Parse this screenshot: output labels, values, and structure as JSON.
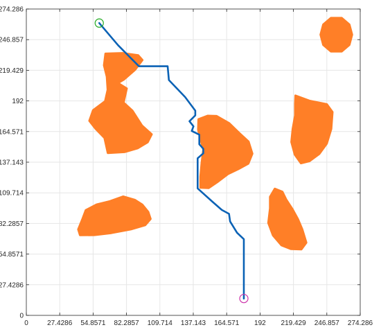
{
  "chart_data": {
    "type": "scatter",
    "xlim": [
      0,
      274.286
    ],
    "ylim": [
      0,
      274.286
    ],
    "grid": true,
    "xticks": [
      "0",
      "27.4286",
      "54.8571",
      "82.2857",
      "109.714",
      "137.143",
      "164.571",
      "192",
      "219.429",
      "246.857",
      "274.286"
    ],
    "yticks": [
      "0",
      "27.4286",
      "54.8571",
      "82.2857",
      "109.714",
      "137.143",
      "164.571",
      "192",
      "219.429",
      "246.857",
      "274.286"
    ],
    "colors": {
      "obstacle": "#ff7f27",
      "path": "#0b62b5",
      "start": "#22aa22",
      "goal": "#cc33aa",
      "grid": "#e6e6e6",
      "axis": "#262626"
    },
    "path": [
      [
        59.9,
        261.7
      ],
      [
        75.4,
        241.8
      ],
      [
        92.5,
        223.0
      ],
      [
        116.1,
        223.0
      ],
      [
        117.1,
        210.7
      ],
      [
        130.5,
        195.4
      ],
      [
        138.8,
        183.3
      ],
      [
        138.8,
        179.0
      ],
      [
        134.0,
        173.8
      ],
      [
        137.3,
        169.2
      ],
      [
        135.9,
        165.1
      ],
      [
        142.1,
        161.8
      ],
      [
        142.1,
        153.2
      ],
      [
        145.4,
        149.1
      ],
      [
        145.4,
        145.1
      ],
      [
        140.7,
        140.6
      ],
      [
        140.7,
        113.7
      ],
      [
        152.6,
        102.0
      ],
      [
        160.6,
        94.4
      ],
      [
        166.5,
        90.9
      ],
      [
        167.4,
        84.0
      ],
      [
        173.1,
        74.0
      ],
      [
        178.7,
        68.2
      ],
      [
        178.7,
        15.1
      ]
    ],
    "start": [
      59.9,
      261.7
    ],
    "goal": [
      178.7,
      15.1
    ],
    "obstacles": [
      [
        [
          65.0,
          234.3
        ],
        [
          79.0,
          234.8
        ],
        [
          91.9,
          232.9
        ],
        [
          95.4,
          228.6
        ],
        [
          89.4,
          219.9
        ],
        [
          80.2,
          211.2
        ],
        [
          75.3,
          208.0
        ],
        [
          82.5,
          203.2
        ],
        [
          79.9,
          190.5
        ],
        [
          87.1,
          183.3
        ],
        [
          95.0,
          170.0
        ],
        [
          103.0,
          162.1
        ],
        [
          99.7,
          155.0
        ],
        [
          91.4,
          149.6
        ],
        [
          80.6,
          146.2
        ],
        [
          66.9,
          145.4
        ],
        [
          64.2,
          158.9
        ],
        [
          56.8,
          167.2
        ],
        [
          51.8,
          174.2
        ],
        [
          54.8,
          183.6
        ],
        [
          64.7,
          191.7
        ],
        [
          66.8,
          201.9
        ],
        [
          66.1,
          213.7
        ],
        [
          63.8,
          223.9
        ]
      ],
      [
        [
          148.9,
          178.7
        ],
        [
          156.3,
          178.5
        ],
        [
          166.7,
          172.0
        ],
        [
          174.9,
          163.3
        ],
        [
          182.6,
          155.5
        ],
        [
          185.7,
          144.8
        ],
        [
          182.4,
          135.9
        ],
        [
          174.2,
          131.0
        ],
        [
          165.6,
          126.5
        ],
        [
          156.8,
          119.2
        ],
        [
          149.8,
          114.0
        ],
        [
          143.0,
          114.3
        ],
        [
          143.0,
          124.2
        ],
        [
          144.0,
          136.1
        ],
        [
          145.4,
          148.4
        ],
        [
          142.7,
          159.2
        ],
        [
          141.1,
          166.3
        ],
        [
          141.4,
          175.6
        ]
      ],
      [
        [
          221.1,
          196.8
        ],
        [
          232.5,
          192.2
        ],
        [
          246.8,
          189.1
        ],
        [
          251.5,
          182.1
        ],
        [
          250.5,
          166.9
        ],
        [
          246.8,
          153.7
        ],
        [
          240.7,
          144.6
        ],
        [
          232.6,
          138.1
        ],
        [
          225.6,
          136.2
        ],
        [
          220.5,
          144.0
        ],
        [
          217.7,
          155.2
        ],
        [
          218.8,
          166.9
        ],
        [
          220.8,
          179.0
        ],
        [
          220.8,
          189.6
        ]
      ],
      [
        [
          204.1,
          113.4
        ],
        [
          210.3,
          110.7
        ],
        [
          213.5,
          103.7
        ],
        [
          218.5,
          95.3
        ],
        [
          223.1,
          86.2
        ],
        [
          226.7,
          77.0
        ],
        [
          230.0,
          65.1
        ],
        [
          226.0,
          59.1
        ],
        [
          217.5,
          59.4
        ],
        [
          209.5,
          62.8
        ],
        [
          202.6,
          71.7
        ],
        [
          198.8,
          82.8
        ],
        [
          200.2,
          95.8
        ],
        [
          200.2,
          106.1
        ]
      ],
      [
        [
          79.5,
          106.4
        ],
        [
          89.3,
          103.3
        ],
        [
          95.3,
          99.1
        ],
        [
          100.2,
          92.6
        ],
        [
          102.1,
          86.3
        ],
        [
          97.7,
          80.8
        ],
        [
          85.8,
          77.0
        ],
        [
          69.8,
          73.7
        ],
        [
          55.8,
          71.9
        ],
        [
          44.1,
          71.8
        ],
        [
          42.6,
          77.0
        ],
        [
          46.2,
          86.6
        ],
        [
          48.8,
          94.2
        ],
        [
          57.7,
          99.2
        ],
        [
          68.7,
          102.2
        ]
      ],
      [
        [
          267.6,
          251.3
        ],
        [
          265.4,
          260.4
        ],
        [
          259.1,
          266.3
        ],
        [
          250.2,
          266.3
        ],
        [
          243.9,
          260.4
        ],
        [
          241.7,
          251.3
        ],
        [
          243.9,
          242.2
        ],
        [
          250.2,
          236.3
        ],
        [
          259.1,
          236.3
        ],
        [
          265.4,
          242.2
        ]
      ]
    ]
  }
}
